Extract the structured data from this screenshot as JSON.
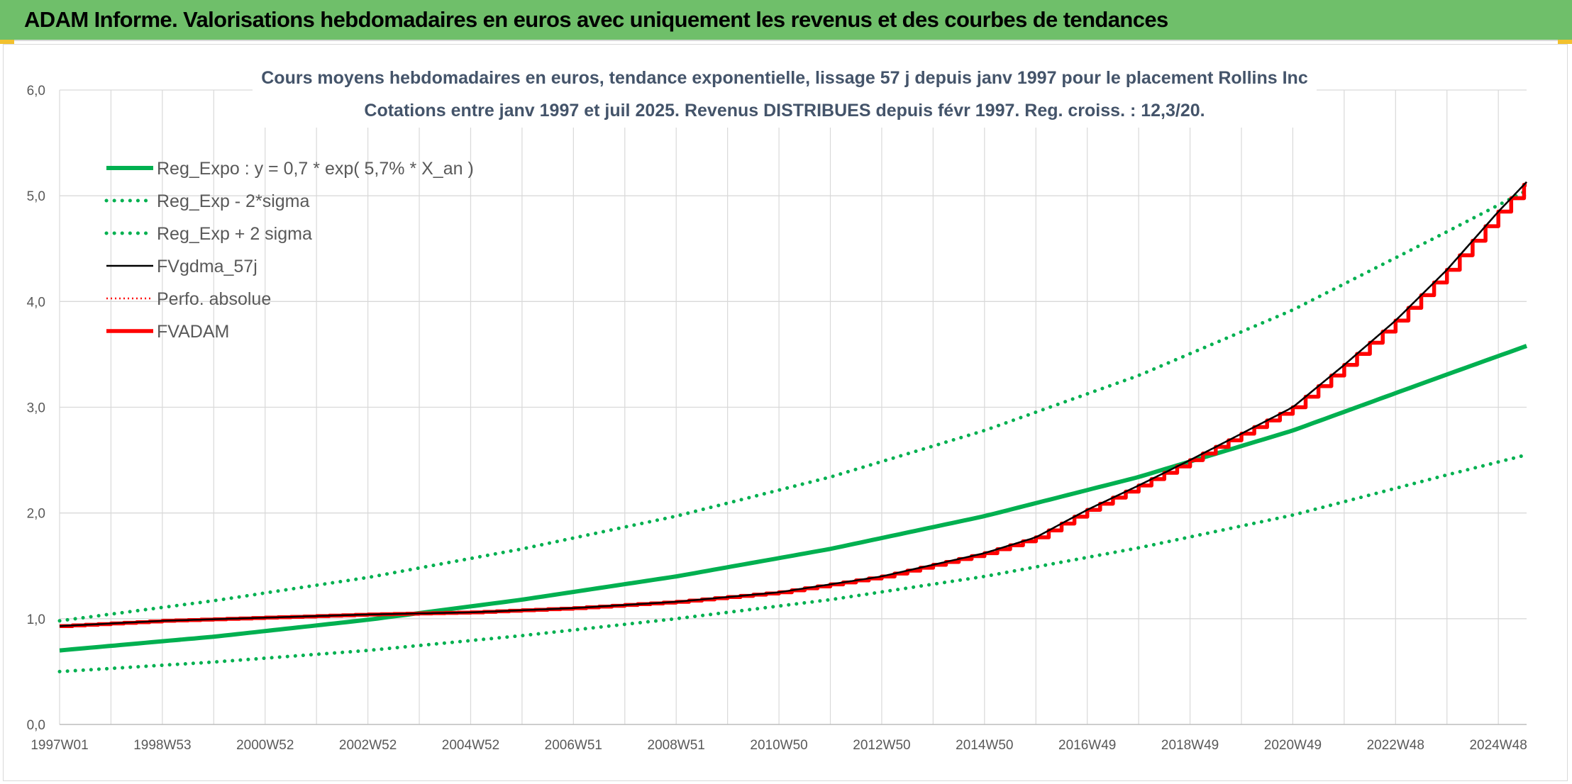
{
  "header": {
    "title": "ADAM Informe. Valorisations hebdomadaires en euros avec uniquement les revenus et des courbes de tendances"
  },
  "chart_data": {
    "type": "line",
    "title": "Cours moyens hebdomadaires en euros, tendance exponentielle, lissage 57 j depuis janv 1997 pour le placement Rollins Inc",
    "subtitle": "Cotations entre janv 1997 et juil 2025. Revenus DISTRIBUES depuis févr 1997. Reg. croiss. : 12,3/20.",
    "xlabel": "",
    "ylabel": "",
    "x_range": [
      1997.0,
      2025.55
    ],
    "ylim": [
      0,
      6
    ],
    "y_ticks": [
      0,
      1,
      2,
      3,
      4,
      5,
      6
    ],
    "y_tick_labels": [
      "0,0",
      "1,0",
      "2,0",
      "3,0",
      "4,0",
      "5,0",
      "6,0"
    ],
    "x_tick_labels": [
      "1997W01",
      "1998W53",
      "2000W52",
      "2002W52",
      "2004W52",
      "2006W51",
      "2008W51",
      "2010W50",
      "2012W50",
      "2014W50",
      "2016W49",
      "2018W49",
      "2020W49",
      "2022W48",
      "2024W48"
    ],
    "x_tick_values": [
      1997.0,
      1999.0,
      2001.0,
      2003.0,
      2005.0,
      2007.0,
      2009.0,
      2011.0,
      2013.0,
      2015.0,
      2017.0,
      2019.0,
      2021.0,
      2023.0,
      2025.0
    ],
    "grid": true,
    "legend_position": "top-left",
    "series": [
      {
        "name": "Reg_Expo : y = 0,7 * exp( 5,7% *  X_an )",
        "style": "solid-thick",
        "color": "#00b050",
        "x": [
          1997.0,
          2000.0,
          2003.0,
          2006.0,
          2009.0,
          2012.0,
          2015.0,
          2018.0,
          2021.0,
          2024.0,
          2025.55
        ],
        "values": [
          0.7,
          0.83,
          0.99,
          1.18,
          1.4,
          1.66,
          1.97,
          2.34,
          2.78,
          3.31,
          3.58
        ]
      },
      {
        "name": "Reg_Exp - 2*sigma",
        "style": "dotted",
        "color": "#00b050",
        "x": [
          1997.0,
          2000.0,
          2003.0,
          2006.0,
          2009.0,
          2012.0,
          2015.0,
          2018.0,
          2021.0,
          2024.0,
          2025.55
        ],
        "values": [
          0.5,
          0.59,
          0.7,
          0.84,
          1.0,
          1.18,
          1.4,
          1.67,
          1.98,
          2.36,
          2.55
        ]
      },
      {
        "name": "Reg_Exp + 2 sigma",
        "style": "dotted",
        "color": "#00b050",
        "x": [
          1997.0,
          2000.0,
          2003.0,
          2006.0,
          2009.0,
          2012.0,
          2015.0,
          2018.0,
          2021.0,
          2024.0,
          2025.55
        ],
        "values": [
          0.98,
          1.17,
          1.39,
          1.66,
          1.97,
          2.34,
          2.78,
          3.3,
          3.92,
          4.66,
          5.05
        ]
      },
      {
        "name": "FVgdma_57j",
        "style": "solid-thin",
        "color": "#000000",
        "x": [
          1997.0,
          1999.0,
          2001.0,
          2003.0,
          2005.0,
          2007.0,
          2009.0,
          2011.0,
          2013.0,
          2015.0,
          2016.0,
          2017.0,
          2018.0,
          2019.0,
          2020.0,
          2021.0,
          2022.0,
          2023.0,
          2024.0,
          2025.0,
          2025.55
        ],
        "values": [
          0.93,
          0.98,
          1.01,
          1.04,
          1.06,
          1.1,
          1.16,
          1.25,
          1.4,
          1.62,
          1.77,
          2.03,
          2.26,
          2.5,
          2.75,
          3.0,
          3.4,
          3.82,
          4.3,
          4.85,
          5.13
        ]
      },
      {
        "name": "Perfo. absolue",
        "style": "dotted-thin",
        "color": "#ff0000",
        "x": [
          1997.0,
          1999.0,
          2001.0,
          2003.0,
          2005.0,
          2007.0,
          2009.0,
          2011.0,
          2013.0,
          2015.0,
          2016.0,
          2017.0,
          2018.0,
          2019.0,
          2020.0,
          2021.0,
          2022.0,
          2023.0,
          2024.0,
          2025.0,
          2025.55
        ],
        "values": [
          0.93,
          0.98,
          1.01,
          1.04,
          1.06,
          1.1,
          1.16,
          1.25,
          1.4,
          1.62,
          1.77,
          2.03,
          2.26,
          2.5,
          2.75,
          3.0,
          3.4,
          3.82,
          4.3,
          4.85,
          5.13
        ]
      },
      {
        "name": "FVADAM",
        "style": "stepped-thick",
        "color": "#ff0000",
        "x": [
          1997.0,
          1999.0,
          2001.0,
          2003.0,
          2005.0,
          2007.0,
          2009.0,
          2011.0,
          2013.0,
          2015.0,
          2016.0,
          2017.0,
          2018.0,
          2019.0,
          2020.0,
          2021.0,
          2022.0,
          2023.0,
          2024.0,
          2025.0,
          2025.55
        ],
        "values": [
          0.93,
          0.98,
          1.01,
          1.04,
          1.06,
          1.1,
          1.16,
          1.25,
          1.4,
          1.62,
          1.77,
          2.03,
          2.26,
          2.5,
          2.75,
          3.0,
          3.4,
          3.82,
          4.3,
          4.85,
          5.13
        ]
      }
    ]
  }
}
